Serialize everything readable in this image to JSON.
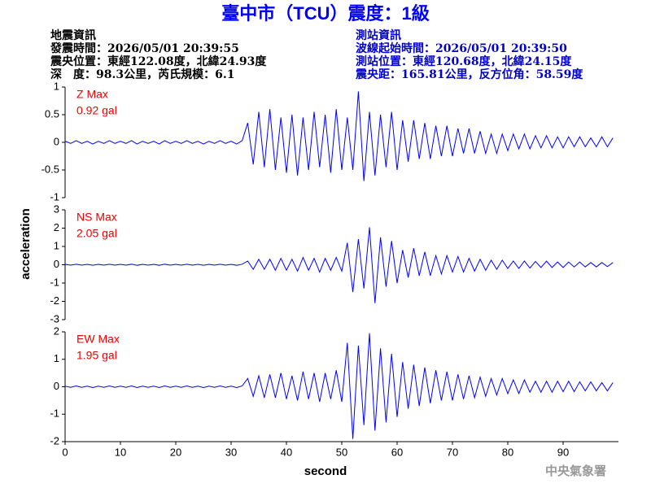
{
  "header": {
    "left": [
      "地震資訊",
      "發震時間：2026/05/01 20:39:55",
      "震央位置：東經122.08度，北緯24.93度",
      "深　度：98.3公里，芮氏規模：6.1"
    ],
    "right": [
      "測站資訊",
      "波線起始時間：2026/05/01 20:39:50",
      "測站位置：東經120.68度，北緯24.15度",
      "震央距：165.81公里，反方位角：58.59度"
    ]
  },
  "footer": "中央氣象署",
  "chart_data": {
    "type": "line",
    "title": "臺中市（TCU）震度：1級",
    "xlabel": "second",
    "ylabel": "acceleration",
    "xlim": [
      0,
      100
    ],
    "xticks": [
      0,
      10,
      20,
      30,
      40,
      50,
      60,
      70,
      80,
      90
    ],
    "x": [
      0,
      1,
      2,
      3,
      4,
      5,
      6,
      7,
      8,
      9,
      10,
      11,
      12,
      13,
      14,
      15,
      16,
      17,
      18,
      19,
      20,
      21,
      22,
      23,
      24,
      25,
      26,
      27,
      28,
      29,
      30,
      31,
      32,
      33,
      34,
      35,
      36,
      37,
      38,
      39,
      40,
      41,
      42,
      43,
      44,
      45,
      46,
      47,
      48,
      49,
      50,
      51,
      52,
      53,
      54,
      55,
      56,
      57,
      58,
      59,
      60,
      61,
      62,
      63,
      64,
      65,
      66,
      67,
      68,
      69,
      70,
      71,
      72,
      73,
      74,
      75,
      76,
      77,
      78,
      79,
      80,
      81,
      82,
      83,
      84,
      85,
      86,
      87,
      88,
      89,
      90,
      91,
      92,
      93,
      94,
      95,
      96,
      97,
      98,
      99
    ],
    "series": [
      {
        "name": "Z Max",
        "peak_label": "0.92 gal",
        "color": "#0000ff",
        "ylim": [
          -1,
          1
        ],
        "yticks": [
          -1,
          -0.5,
          0,
          0.5,
          1
        ],
        "values": [
          0.02,
          -0.02,
          0.03,
          -0.02,
          0.02,
          -0.03,
          0.02,
          -0.02,
          0.03,
          -0.02,
          0.02,
          -0.02,
          0.03,
          -0.03,
          0.02,
          -0.02,
          0.02,
          -0.03,
          0.03,
          -0.02,
          0.02,
          -0.02,
          0.03,
          -0.02,
          0.02,
          -0.03,
          0.02,
          -0.02,
          0.03,
          -0.02,
          0.02,
          -0.03,
          0.03,
          0.35,
          -0.4,
          0.55,
          -0.45,
          0.6,
          -0.5,
          0.45,
          -0.55,
          0.5,
          -0.6,
          0.45,
          -0.5,
          0.55,
          -0.45,
          0.5,
          -0.55,
          0.6,
          -0.5,
          0.45,
          -0.5,
          0.92,
          -0.7,
          0.55,
          -0.6,
          0.5,
          -0.45,
          0.55,
          -0.5,
          0.4,
          -0.35,
          0.4,
          -0.3,
          0.35,
          -0.3,
          0.3,
          -0.25,
          0.3,
          -0.25,
          0.25,
          -0.2,
          0.25,
          -0.2,
          0.2,
          -0.2,
          0.15,
          -0.2,
          0.15,
          -0.15,
          0.15,
          -0.12,
          0.15,
          -0.12,
          0.12,
          -0.1,
          0.12,
          -0.1,
          0.1,
          -0.1,
          0.1,
          -0.08,
          0.1,
          -0.08,
          0.08,
          -0.08,
          0.1,
          -0.08,
          0.08
        ]
      },
      {
        "name": "NS Max",
        "peak_label": "2.05 gal",
        "color": "#0000ff",
        "ylim": [
          -3,
          3
        ],
        "yticks": [
          -3,
          -2,
          -1,
          0,
          1,
          2,
          3
        ],
        "values": [
          0.02,
          -0.02,
          0.03,
          -0.02,
          0.02,
          -0.03,
          0.02,
          -0.02,
          0.03,
          -0.02,
          0.02,
          -0.02,
          0.03,
          -0.03,
          0.02,
          -0.02,
          0.02,
          -0.03,
          0.03,
          -0.02,
          0.02,
          -0.02,
          0.03,
          -0.02,
          0.02,
          -0.03,
          0.02,
          -0.02,
          0.03,
          -0.02,
          0.02,
          -0.03,
          0.03,
          0.2,
          -0.25,
          0.3,
          -0.25,
          0.3,
          -0.3,
          0.35,
          -0.3,
          0.3,
          -0.35,
          0.4,
          -0.3,
          0.35,
          -0.4,
          0.35,
          -0.3,
          0.4,
          -0.35,
          1.2,
          -1.5,
          1.4,
          -1.3,
          2.05,
          -2.1,
          1.5,
          -1.2,
          1.3,
          -1.0,
          0.8,
          -0.7,
          0.9,
          -0.6,
          0.7,
          -0.6,
          0.5,
          -0.5,
          0.5,
          -0.4,
          0.45,
          -0.4,
          0.35,
          -0.35,
          0.3,
          -0.3,
          0.25,
          -0.25,
          0.25,
          -0.2,
          0.2,
          -0.2,
          0.2,
          -0.18,
          0.18,
          -0.15,
          0.2,
          -0.15,
          0.15,
          -0.15,
          0.15,
          -0.12,
          0.15,
          -0.12,
          0.12,
          -0.12,
          0.12,
          -0.1,
          0.12
        ]
      },
      {
        "name": "EW Max",
        "peak_label": "1.95 gal",
        "color": "#0000ff",
        "ylim": [
          -2,
          2
        ],
        "yticks": [
          -2,
          -1,
          0,
          1,
          2
        ],
        "values": [
          0.02,
          -0.02,
          0.03,
          -0.02,
          0.02,
          -0.03,
          0.02,
          -0.02,
          0.03,
          -0.02,
          0.02,
          -0.02,
          0.03,
          -0.03,
          0.02,
          -0.02,
          0.02,
          -0.03,
          0.03,
          -0.02,
          0.02,
          -0.02,
          0.03,
          -0.02,
          0.02,
          -0.03,
          0.02,
          -0.02,
          0.03,
          -0.02,
          0.02,
          -0.03,
          0.03,
          0.3,
          -0.35,
          0.4,
          -0.4,
          0.45,
          -0.4,
          0.5,
          -0.45,
          0.4,
          -0.5,
          0.55,
          -0.45,
          0.5,
          -0.55,
          0.5,
          -0.45,
          0.6,
          -0.55,
          1.6,
          -1.9,
          1.5,
          -1.4,
          1.95,
          -1.6,
          1.4,
          -1.3,
          1.2,
          -1.1,
          0.9,
          -0.8,
          0.8,
          -0.7,
          0.7,
          -0.6,
          0.6,
          -0.5,
          0.55,
          -0.5,
          0.45,
          -0.45,
          0.4,
          -0.4,
          0.35,
          -0.35,
          0.3,
          -0.3,
          0.3,
          -0.25,
          0.25,
          -0.25,
          0.25,
          -0.2,
          0.2,
          -0.2,
          0.2,
          -0.2,
          0.2,
          -0.18,
          0.2,
          -0.18,
          0.18,
          -0.15,
          0.18,
          -0.15,
          0.15,
          -0.15,
          0.15
        ]
      }
    ]
  }
}
